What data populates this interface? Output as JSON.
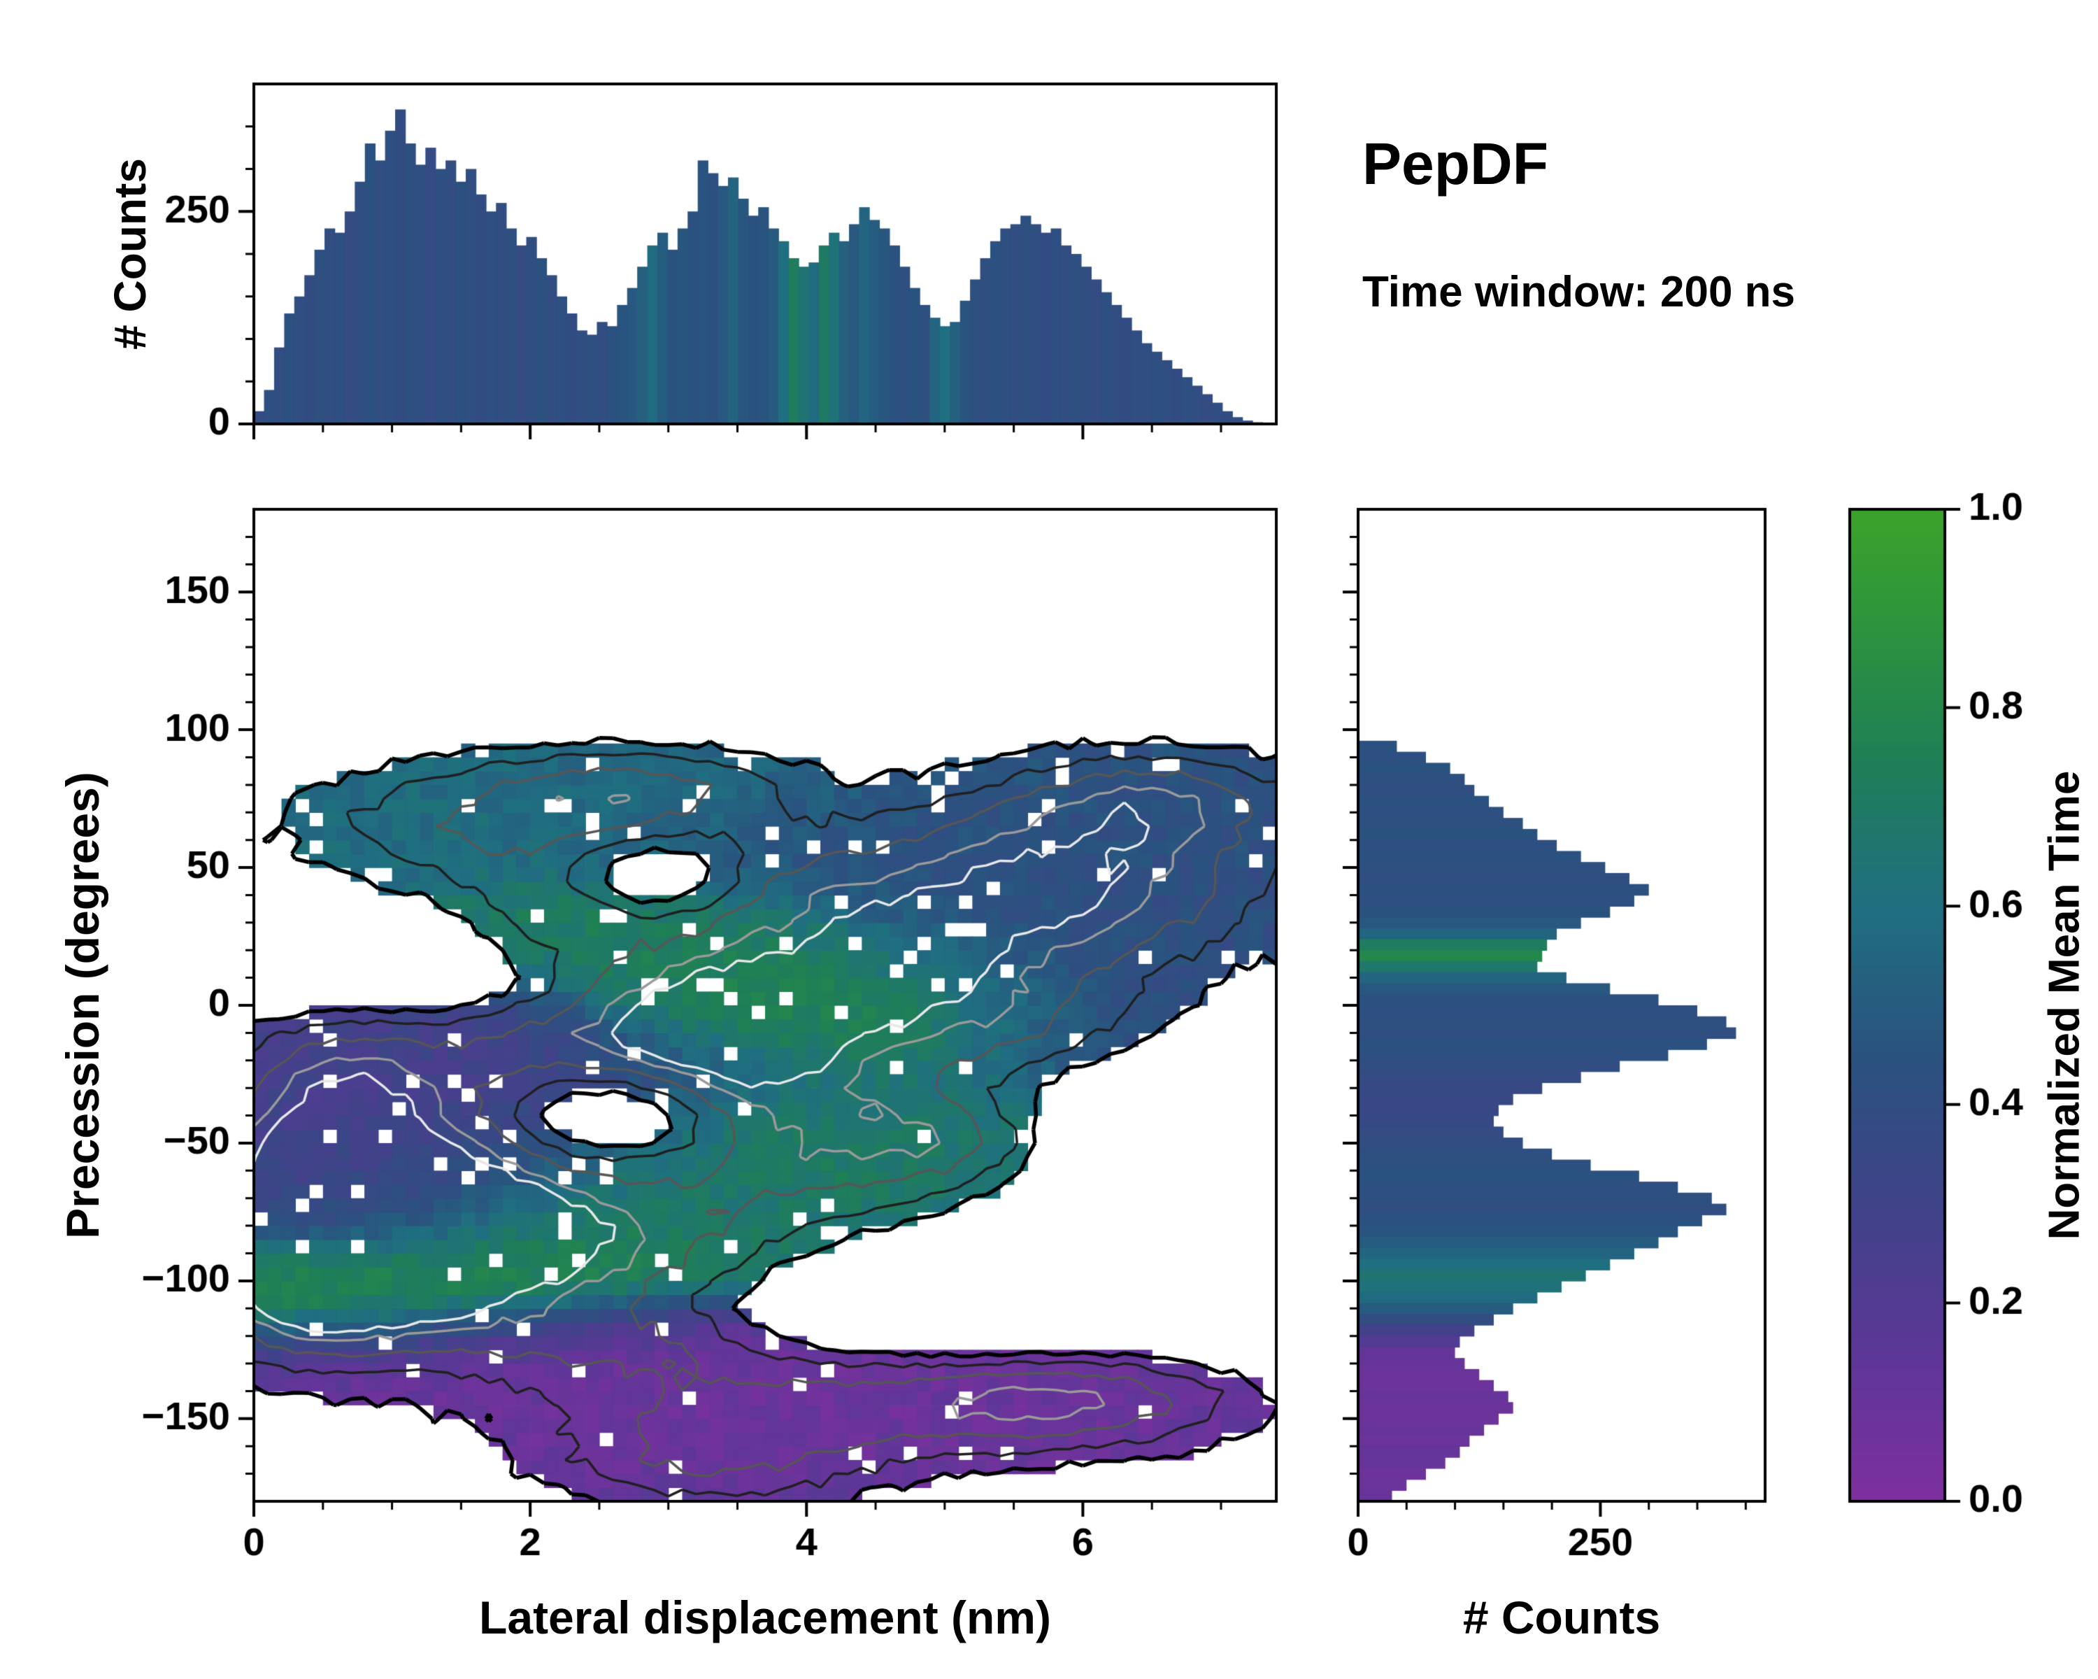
{
  "title": "PepDF",
  "subtitle": "Time window: 200 ns",
  "colors": {
    "background": "#ffffff",
    "axis": "#000000",
    "colormap_stops": [
      {
        "t": 0.0,
        "c": "#7e2f9e"
      },
      {
        "t": 0.15,
        "c": "#5c3797"
      },
      {
        "t": 0.3,
        "c": "#3f4388"
      },
      {
        "t": 0.45,
        "c": "#2a527f"
      },
      {
        "t": 0.6,
        "c": "#1f6f80"
      },
      {
        "t": 0.75,
        "c": "#1f7f56"
      },
      {
        "t": 0.9,
        "c": "#2f963a"
      },
      {
        "t": 1.0,
        "c": "#3ba32b"
      }
    ]
  },
  "chart_data": [
    {
      "id": "top_marginal_histogram",
      "type": "bar",
      "orientation": "vertical",
      "ylabel": "# Counts",
      "xlim": [
        0,
        7.4
      ],
      "ylim": [
        0,
        400
      ],
      "xticks": [
        0,
        2,
        4,
        6
      ],
      "yticks": [
        0,
        250
      ],
      "x_start": 0.037,
      "bar_step": 0.073,
      "values": [
        15,
        40,
        90,
        130,
        150,
        175,
        205,
        230,
        225,
        250,
        285,
        330,
        310,
        345,
        370,
        330,
        305,
        325,
        300,
        310,
        285,
        300,
        270,
        250,
        260,
        230,
        210,
        220,
        195,
        175,
        150,
        130,
        110,
        105,
        120,
        115,
        140,
        160,
        185,
        210,
        225,
        205,
        230,
        250,
        310,
        295,
        280,
        290,
        265,
        245,
        255,
        230,
        215,
        195,
        185,
        190,
        210,
        225,
        215,
        235,
        255,
        240,
        230,
        210,
        185,
        160,
        140,
        125,
        115,
        120,
        145,
        170,
        195,
        215,
        230,
        235,
        245,
        235,
        225,
        230,
        210,
        200,
        185,
        170,
        155,
        140,
        125,
        110,
        95,
        85,
        75,
        65,
        55,
        45,
        35,
        25,
        15,
        8,
        4,
        2
      ],
      "color_values": [
        0.38,
        0.42,
        0.4,
        0.44,
        0.41,
        0.39,
        0.43,
        0.4,
        0.42,
        0.38,
        0.41,
        0.44,
        0.4,
        0.42,
        0.39,
        0.43,
        0.41,
        0.38,
        0.42,
        0.4,
        0.44,
        0.41,
        0.39,
        0.42,
        0.4,
        0.43,
        0.38,
        0.41,
        0.44,
        0.4,
        0.42,
        0.39,
        0.41,
        0.43,
        0.4,
        0.44,
        0.46,
        0.48,
        0.52,
        0.58,
        0.5,
        0.45,
        0.47,
        0.44,
        0.46,
        0.43,
        0.48,
        0.55,
        0.47,
        0.44,
        0.46,
        0.49,
        0.6,
        0.72,
        0.65,
        0.58,
        0.7,
        0.62,
        0.52,
        0.48,
        0.55,
        0.5,
        0.47,
        0.44,
        0.42,
        0.45,
        0.43,
        0.55,
        0.6,
        0.52,
        0.46,
        0.43,
        0.41,
        0.44,
        0.42,
        0.4,
        0.43,
        0.41,
        0.39,
        0.42,
        0.4,
        0.43,
        0.41,
        0.38,
        0.42,
        0.4,
        0.39,
        0.41,
        0.4,
        0.42,
        0.41,
        0.39,
        0.42,
        0.4,
        0.38,
        0.41,
        0.39,
        0.4,
        0.42,
        0.4
      ]
    },
    {
      "id": "main_heatmap",
      "type": "heatmap",
      "xlabel": "Lateral displacement (nm)",
      "ylabel": "Precession (degrees)",
      "color_label": "Normalized Mean Time",
      "xlim": [
        0,
        7.4
      ],
      "ylim": [
        -180,
        180
      ],
      "xticks": [
        0,
        2,
        4,
        6
      ],
      "yticks": [
        -150,
        -100,
        -50,
        0,
        50,
        100,
        150
      ],
      "grid": {
        "nx": 74,
        "ny": 72
      },
      "occupancy_threshold": 0.17,
      "noise": {
        "occupancy": 0.04,
        "value": 0.05,
        "speckle_fraction": 0.05
      },
      "density_cluster_format": [
        "amplitude",
        "x_nm",
        "y_deg",
        "sigma_x",
        "sigma_y"
      ],
      "density_clusters": [
        [
          1.0,
          0.9,
          -72,
          0.85,
          26
        ],
        [
          0.7,
          2.2,
          -88,
          1.1,
          20
        ],
        [
          0.55,
          0.5,
          -105,
          0.7,
          18
        ],
        [
          0.85,
          3.35,
          -8,
          0.75,
          22
        ],
        [
          0.55,
          4.1,
          -50,
          0.9,
          20
        ],
        [
          0.6,
          4.6,
          12,
          0.8,
          22
        ],
        [
          0.8,
          5.9,
          45,
          1.05,
          24
        ],
        [
          0.45,
          6.6,
          75,
          0.7,
          12
        ],
        [
          0.5,
          1.8,
          65,
          1.1,
          16
        ],
        [
          0.4,
          2.8,
          80,
          0.8,
          10
        ],
        [
          0.45,
          0.6,
          -30,
          0.55,
          22
        ],
        [
          0.4,
          1.9,
          -15,
          0.9,
          18
        ],
        [
          0.55,
          4.2,
          -145,
          1.6,
          14
        ],
        [
          0.45,
          6.0,
          -142,
          0.8,
          13
        ],
        [
          0.4,
          3.3,
          -168,
          0.9,
          12
        ],
        [
          0.35,
          5.1,
          -50,
          0.5,
          12
        ],
        [
          0.35,
          2.6,
          -122,
          0.9,
          10
        ],
        [
          0.3,
          5.6,
          -8,
          0.7,
          14
        ],
        [
          0.3,
          3.6,
          45,
          0.8,
          14
        ],
        [
          0.28,
          0.3,
          -80,
          0.4,
          30
        ],
        [
          0.35,
          2.1,
          30,
          0.6,
          14
        ],
        [
          -0.55,
          2.7,
          -38,
          0.55,
          12
        ],
        [
          -0.5,
          2.95,
          47,
          0.45,
          10
        ],
        [
          -0.35,
          1.15,
          12,
          0.8,
          14
        ],
        [
          -0.35,
          5.5,
          -110,
          1.5,
          14
        ],
        [
          -0.35,
          6.9,
          -60,
          1.0,
          25
        ]
      ],
      "value_cluster_format": [
        "mean_time_value",
        "weight",
        "x_nm",
        "y_deg",
        "sigma_x",
        "sigma_y"
      ],
      "value_clusters": [
        [
          0.85,
          2.0,
          1.0,
          -100,
          1.1,
          12
        ],
        [
          0.82,
          1.8,
          2.4,
          -82,
          1.0,
          16
        ],
        [
          0.8,
          1.6,
          3.9,
          -48,
          1.0,
          16
        ],
        [
          0.85,
          2.0,
          4.1,
          2,
          0.9,
          16
        ],
        [
          0.78,
          1.4,
          3.3,
          24,
          0.7,
          12
        ],
        [
          0.75,
          1.0,
          2.1,
          33,
          0.5,
          9
        ],
        [
          0.07,
          2.5,
          4.3,
          -148,
          2.6,
          18
        ],
        [
          0.1,
          1.2,
          2.4,
          -120,
          1.2,
          10
        ],
        [
          0.25,
          1.5,
          1.5,
          -32,
          1.6,
          20
        ],
        [
          0.3,
          2.5,
          0.9,
          -70,
          0.8,
          14
        ],
        [
          0.42,
          1.6,
          5.6,
          40,
          1.4,
          24
        ],
        [
          0.4,
          1.0,
          6.4,
          8,
          1.1,
          22
        ],
        [
          0.6,
          1.5,
          1.7,
          68,
          1.3,
          16
        ],
        [
          0.55,
          0.9,
          3.3,
          82,
          1.1,
          10
        ],
        [
          0.45,
          0.9,
          4.7,
          60,
          1.0,
          14
        ],
        [
          0.62,
          0.8,
          5.1,
          -50,
          0.6,
          10
        ],
        [
          0.5,
          0.7,
          3.1,
          -75,
          0.8,
          12
        ]
      ],
      "value_baseline": {
        "value": 0.45,
        "weight": 0.12
      },
      "contour_levels": [
        0.17,
        0.32,
        0.5,
        0.68,
        0.8
      ],
      "contour_colors": [
        "#000000",
        "#1f1f1f",
        "#565656",
        "#9a9a9a",
        "#e8e8e8"
      ]
    },
    {
      "id": "right_marginal_histogram",
      "type": "bar",
      "orientation": "horizontal",
      "xlabel": "# Counts",
      "xlim": [
        0,
        420
      ],
      "ylim": [
        -180,
        180
      ],
      "xticks": [
        0,
        250
      ],
      "y_start": 94,
      "y_step": -4,
      "values": [
        40,
        70,
        95,
        110,
        120,
        135,
        150,
        170,
        185,
        205,
        230,
        255,
        280,
        300,
        285,
        260,
        230,
        205,
        195,
        190,
        185,
        215,
        260,
        310,
        350,
        380,
        390,
        360,
        320,
        270,
        230,
        190,
        160,
        145,
        140,
        150,
        170,
        200,
        240,
        290,
        330,
        365,
        380,
        355,
        330,
        310,
        285,
        260,
        235,
        210,
        185,
        160,
        140,
        120,
        105,
        100,
        110,
        125,
        140,
        155,
        160,
        145,
        130,
        115,
        105,
        90,
        70,
        50,
        35
      ],
      "color_values": [
        0.44,
        0.42,
        0.45,
        0.43,
        0.41,
        0.44,
        0.42,
        0.43,
        0.45,
        0.42,
        0.44,
        0.43,
        0.41,
        0.44,
        0.42,
        0.45,
        0.48,
        0.55,
        0.72,
        0.8,
        0.68,
        0.55,
        0.48,
        0.44,
        0.42,
        0.43,
        0.41,
        0.44,
        0.42,
        0.4,
        0.38,
        0.36,
        0.35,
        0.34,
        0.36,
        0.38,
        0.4,
        0.42,
        0.43,
        0.44,
        0.42,
        0.43,
        0.41,
        0.44,
        0.46,
        0.5,
        0.55,
        0.6,
        0.65,
        0.62,
        0.58,
        0.5,
        0.4,
        0.28,
        0.2,
        0.12,
        0.1,
        0.09,
        0.08,
        0.1,
        0.09,
        0.08,
        0.1,
        0.09,
        0.11,
        0.1,
        0.08,
        0.09,
        0.1
      ]
    },
    {
      "id": "colorbar",
      "type": "colorbar",
      "label": "Normalized Mean Time",
      "range": [
        0,
        1
      ],
      "ticks": [
        0.0,
        0.2,
        0.4,
        0.6,
        0.8,
        1.0
      ]
    }
  ]
}
